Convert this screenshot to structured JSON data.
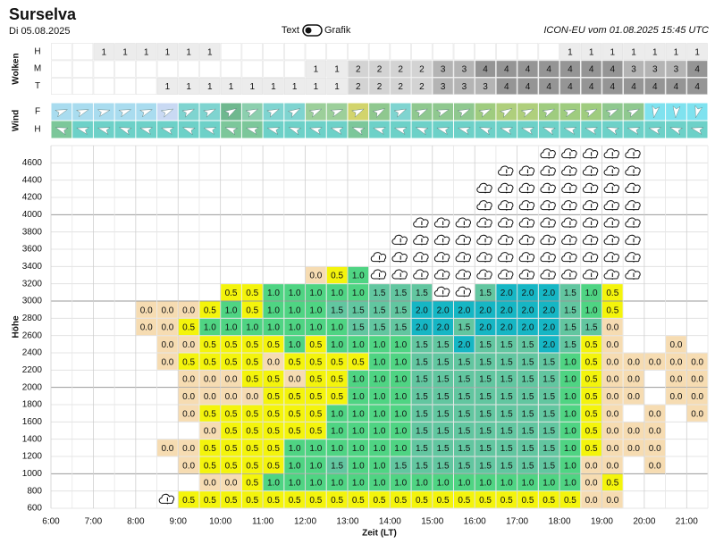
{
  "header": {
    "title": "Surselva",
    "date": "Di 05.08.2025",
    "toggle_left": "Text",
    "toggle_right": "Grafik",
    "model": "ICON-EU vom 01.08.2025 15:45 UTC"
  },
  "clouds": {
    "label": "Wolken",
    "colors": {
      "1": "#ececec",
      "2": "#d3d3d3",
      "3": "#b4b4b4",
      "4": "#959595"
    },
    "rows": [
      {
        "label": "H",
        "cells": [
          null,
          null,
          "1",
          "1",
          "1",
          "1",
          "1",
          "1",
          null,
          null,
          null,
          null,
          null,
          null,
          null,
          null,
          null,
          null,
          null,
          null,
          null,
          null,
          null,
          null,
          "1",
          "1",
          "1",
          "1",
          "1",
          "1",
          "1"
        ]
      },
      {
        "label": "M",
        "cells": [
          null,
          null,
          null,
          null,
          null,
          null,
          null,
          null,
          null,
          null,
          null,
          null,
          "1",
          "1",
          "2",
          "2",
          "2",
          "2",
          "3",
          "3",
          "4",
          "4",
          "4",
          "4",
          "4",
          "4",
          "4",
          "3",
          "3",
          "3",
          "4"
        ]
      },
      {
        "label": "T",
        "cells": [
          null,
          null,
          null,
          null,
          null,
          "1",
          "1",
          "1",
          "1",
          "1",
          "1",
          "1",
          "1",
          "1",
          "2",
          "2",
          "2",
          "2",
          "3",
          "3",
          "3",
          "4",
          "4",
          "4",
          "4",
          "4",
          "4",
          "4",
          "4",
          "4",
          "4"
        ]
      }
    ]
  },
  "wind": {
    "label": "Wind",
    "rows": [
      {
        "label": "F",
        "colors": [
          "#a9dcef",
          "#a9dcef",
          "#a9dcef",
          "#a9dcef",
          "#a9dcef",
          "#c9d9f3",
          "#7fd4d0",
          "#7fd4d0",
          "#6fb88f",
          "#8ccfae",
          "#7fd4d0",
          "#7fd4d0",
          "#9ccf9a",
          "#9ccf9a",
          "#d2d46c",
          "#8fc88f",
          "#7fd4d0",
          "#8fc88f",
          "#8fc88f",
          "#8fc88f",
          "#9fcc7f",
          "#afcf7c",
          "#afcf7c",
          "#9fcc7f",
          "#9fcc7f",
          "#9fcc7f",
          "#8fc88f",
          "#8fc88f",
          "#7fe2ef",
          "#7fe2ef",
          "#7fe2ef"
        ],
        "directions": [
          -20,
          -20,
          -15,
          -20,
          -20,
          -25,
          -25,
          -25,
          -30,
          -25,
          -25,
          -30,
          -25,
          -20,
          -25,
          -30,
          -25,
          -25,
          -20,
          -25,
          -25,
          -30,
          -25,
          -25,
          -20,
          -25,
          -25,
          -25,
          100,
          95,
          105
        ]
      },
      {
        "label": "H",
        "colors": [
          "#7cc79a",
          "#6dd1c8",
          "#6dd1c8",
          "#6dd1c8",
          "#6dd1c8",
          "#6dd1c8",
          "#6dd1c8",
          "#6dd1c8",
          "#7cc79a",
          "#7cc79a",
          "#6dd1c8",
          "#6dd1c8",
          "#6dd1c8",
          "#6dd1c8",
          "#7cc79a",
          "#6dd1c8",
          "#6dd1c8",
          "#6dd1c8",
          "#6dd1c8",
          "#6dd1c8",
          "#6dd1c8",
          "#6dd1c8",
          "#6dd1c8",
          "#6dd1c8",
          "#6dd1c8",
          "#6dd1c8",
          "#6dd1c8",
          "#6dd1c8",
          "#6dd1c8",
          "#6dd1c8",
          "#6dd1c8"
        ],
        "directions": [
          200,
          195,
          195,
          200,
          195,
          195,
          200,
          195,
          200,
          195,
          195,
          200,
          195,
          195,
          200,
          195,
          195,
          200,
          195,
          195,
          200,
          195,
          195,
          200,
          195,
          195,
          200,
          195,
          195,
          200,
          195
        ]
      }
    ]
  },
  "heatmap": {
    "y_label": "Höhe",
    "x_label": "Zeit (LT)",
    "y_ticks": [
      "600",
      "800",
      "1000",
      "1200",
      "1400",
      "1600",
      "1800",
      "2000",
      "2200",
      "2400",
      "2600",
      "2800",
      "3000",
      "3200",
      "3400",
      "3600",
      "3800",
      "4000",
      "4200",
      "4400",
      "4600"
    ],
    "x_ticks": [
      "6:00",
      "7:00",
      "8:00",
      "9:00",
      "10:00",
      "11:00",
      "12:00",
      "13:00",
      "14:00",
      "15:00",
      "16:00",
      "17:00",
      "18:00",
      "19:00",
      "20:00",
      "21:00"
    ],
    "colors": {
      "0.0": "#f6dcb2",
      "0.5": "#f4f40c",
      "1.0": "#4fd483",
      "1.5": "#62c6a0",
      "2.0": "#16b6c4"
    },
    "rows": [
      {
        "cells": [
          null,
          null,
          null,
          null,
          null,
          true,
          "0.5",
          "0.5",
          "0.5",
          "0.5",
          "0.5",
          "0.5",
          "0.5",
          "0.5",
          "0.5",
          "0.5",
          "0.5",
          "0.5",
          "0.5",
          "0.5",
          "0.5",
          "0.5",
          "0.5",
          "0.5",
          "0.5",
          "0.0",
          "0.0",
          null,
          null,
          null,
          null
        ]
      },
      {
        "cells": [
          null,
          null,
          null,
          null,
          null,
          null,
          null,
          "0.0",
          "0.0",
          "0.5",
          "1.0",
          "1.0",
          "1.0",
          "1.0",
          "1.0",
          "1.0",
          "1.0",
          "1.0",
          "1.0",
          "1.0",
          "1.0",
          "1.0",
          "1.0",
          "1.0",
          "1.0",
          "0.0",
          "0.5",
          null,
          null,
          null,
          null
        ]
      },
      {
        "cells": [
          null,
          null,
          null,
          null,
          null,
          null,
          "0.0",
          "0.5",
          "0.5",
          "0.5",
          "0.5",
          "1.0",
          "1.0",
          "1.5",
          "1.0",
          "1.0",
          "1.5",
          "1.5",
          "1.5",
          "1.5",
          "1.5",
          "1.5",
          "1.5",
          "1.5",
          "1.0",
          "0.0",
          "0.0",
          null,
          "0.0",
          null,
          null
        ]
      },
      {
        "cells": [
          null,
          null,
          null,
          null,
          null,
          "0.0",
          "0.0",
          "0.5",
          "0.5",
          "0.5",
          "0.5",
          "1.0",
          "1.0",
          "1.0",
          "1.0",
          "1.0",
          "1.0",
          "1.5",
          "1.5",
          "1.5",
          "1.5",
          "1.5",
          "1.5",
          "1.5",
          "1.0",
          "0.5",
          "0.0",
          "0.0",
          "0.0",
          null,
          null
        ]
      },
      {
        "cells": [
          null,
          null,
          null,
          null,
          null,
          null,
          null,
          "0.0",
          "0.5",
          "0.5",
          "0.5",
          "0.5",
          "0.5",
          "1.0",
          "1.0",
          "1.0",
          "1.0",
          "1.5",
          "1.5",
          "1.5",
          "1.5",
          "1.5",
          "1.5",
          "1.5",
          "1.0",
          "0.5",
          "0.0",
          "0.0",
          "0.0",
          null,
          null
        ]
      },
      {
        "cells": [
          null,
          null,
          null,
          null,
          null,
          null,
          "0.0",
          "0.5",
          "0.5",
          "0.5",
          "0.5",
          "0.5",
          "0.5",
          "1.0",
          "1.0",
          "1.0",
          "1.0",
          "1.5",
          "1.5",
          "1.5",
          "1.5",
          "1.5",
          "1.5",
          "1.5",
          "1.0",
          "0.5",
          "0.0",
          null,
          "0.0",
          null,
          "0.0"
        ]
      },
      {
        "cells": [
          null,
          null,
          null,
          null,
          null,
          null,
          "0.0",
          "0.0",
          "0.0",
          "0.0",
          "0.5",
          "0.5",
          "0.5",
          "0.5",
          "1.0",
          "1.0",
          "1.0",
          "1.5",
          "1.5",
          "1.5",
          "1.5",
          "1.5",
          "1.5",
          "1.5",
          "1.0",
          "0.5",
          "0.0",
          "0.0",
          null,
          "0.0",
          "0.0"
        ]
      },
      {
        "cells": [
          null,
          null,
          null,
          null,
          null,
          null,
          "0.0",
          "0.0",
          "0.0",
          "0.5",
          "0.5",
          "0.0",
          "0.5",
          "0.5",
          "1.0",
          "1.0",
          "1.0",
          "1.5",
          "1.5",
          "1.5",
          "1.5",
          "1.5",
          "1.5",
          "1.5",
          "1.0",
          "0.5",
          "0.0",
          "0.0",
          null,
          "0.0",
          "0.0"
        ]
      },
      {
        "cells": [
          null,
          null,
          null,
          null,
          null,
          "0.0",
          "0.5",
          "0.5",
          "0.5",
          "0.5",
          "0.0",
          "0.5",
          "0.5",
          "0.5",
          "0.5",
          "1.0",
          "1.0",
          "1.5",
          "1.5",
          "1.5",
          "1.5",
          "1.5",
          "1.5",
          "1.5",
          "1.0",
          "0.5",
          "0.0",
          "0.0",
          "0.0",
          "0.0",
          "0.0"
        ]
      },
      {
        "cells": [
          null,
          null,
          null,
          null,
          null,
          "0.0",
          "0.0",
          "0.5",
          "0.5",
          "0.5",
          "0.5",
          "1.0",
          "0.5",
          "1.0",
          "1.0",
          "1.0",
          "1.0",
          "1.5",
          "1.5",
          "2.0",
          "1.5",
          "1.5",
          "1.5",
          "2.0",
          "1.5",
          "0.5",
          "0.0",
          null,
          null,
          "0.0",
          null
        ]
      },
      {
        "cells": [
          null,
          null,
          null,
          null,
          "0.0",
          "0.0",
          "0.5",
          "1.0",
          "1.0",
          "1.0",
          "1.0",
          "1.0",
          "1.0",
          "1.0",
          "1.5",
          "1.5",
          "1.5",
          "2.0",
          "2.0",
          "1.5",
          "2.0",
          "2.0",
          "2.0",
          "2.0",
          "1.5",
          "1.5",
          "0.0",
          null,
          null,
          null,
          null
        ]
      },
      {
        "cells": [
          null,
          null,
          null,
          null,
          "0.0",
          "0.0",
          "0.0",
          "0.5",
          "1.0",
          "0.5",
          "1.0",
          "1.0",
          "1.0",
          "1.5",
          "1.5",
          "1.5",
          "1.5",
          "2.0",
          "2.0",
          "2.0",
          "2.0",
          "2.0",
          "2.0",
          "2.0",
          "1.5",
          "1.0",
          "0.5",
          null,
          null,
          null,
          null
        ]
      },
      {
        "cells": [
          null,
          null,
          null,
          null,
          null,
          null,
          null,
          null,
          "0.5",
          "0.5",
          "1.0",
          "1.0",
          "1.0",
          "1.0",
          "1.0",
          "1.5",
          "1.5",
          "1.5",
          true,
          true,
          "1.5",
          "2.0",
          "2.0",
          "2.0",
          "1.5",
          "1.0",
          "0.5",
          null,
          null,
          null,
          null
        ]
      },
      {
        "cells": [
          null,
          null,
          null,
          null,
          null,
          null,
          null,
          null,
          null,
          null,
          null,
          null,
          "0.0",
          "0.5",
          "1.0",
          true,
          true,
          true,
          true,
          true,
          true,
          true,
          true,
          true,
          true,
          true,
          true,
          true,
          null,
          null,
          null
        ]
      },
      {
        "cells": [
          null,
          null,
          null,
          null,
          null,
          null,
          null,
          null,
          null,
          null,
          null,
          null,
          null,
          null,
          null,
          true,
          true,
          true,
          true,
          true,
          true,
          true,
          true,
          true,
          true,
          true,
          true,
          true,
          null,
          null,
          null
        ]
      },
      {
        "cells": [
          null,
          null,
          null,
          null,
          null,
          null,
          null,
          null,
          null,
          null,
          null,
          null,
          null,
          null,
          null,
          null,
          true,
          true,
          true,
          true,
          true,
          true,
          true,
          true,
          true,
          true,
          true,
          true,
          null,
          null,
          null
        ]
      },
      {
        "cells": [
          null,
          null,
          null,
          null,
          null,
          null,
          null,
          null,
          null,
          null,
          null,
          null,
          null,
          null,
          null,
          null,
          null,
          true,
          true,
          true,
          true,
          true,
          true,
          true,
          true,
          true,
          true,
          true,
          null,
          null,
          null
        ]
      },
      {
        "cells": [
          null,
          null,
          null,
          null,
          null,
          null,
          null,
          null,
          null,
          null,
          null,
          null,
          null,
          null,
          null,
          null,
          null,
          null,
          null,
          null,
          true,
          true,
          true,
          true,
          true,
          true,
          true,
          true,
          null,
          null,
          null
        ]
      },
      {
        "cells": [
          null,
          null,
          null,
          null,
          null,
          null,
          null,
          null,
          null,
          null,
          null,
          null,
          null,
          null,
          null,
          null,
          null,
          null,
          null,
          null,
          true,
          true,
          true,
          true,
          true,
          true,
          true,
          true,
          null,
          null,
          null
        ]
      },
      {
        "cells": [
          null,
          null,
          null,
          null,
          null,
          null,
          null,
          null,
          null,
          null,
          null,
          null,
          null,
          null,
          null,
          null,
          null,
          null,
          null,
          null,
          null,
          true,
          true,
          true,
          true,
          true,
          true,
          true,
          null,
          null,
          null
        ]
      },
      {
        "cells": [
          null,
          null,
          null,
          null,
          null,
          null,
          null,
          null,
          null,
          null,
          null,
          null,
          null,
          null,
          null,
          null,
          null,
          null,
          null,
          null,
          null,
          null,
          null,
          true,
          true,
          true,
          true,
          true,
          null,
          null,
          null
        ]
      }
    ]
  }
}
